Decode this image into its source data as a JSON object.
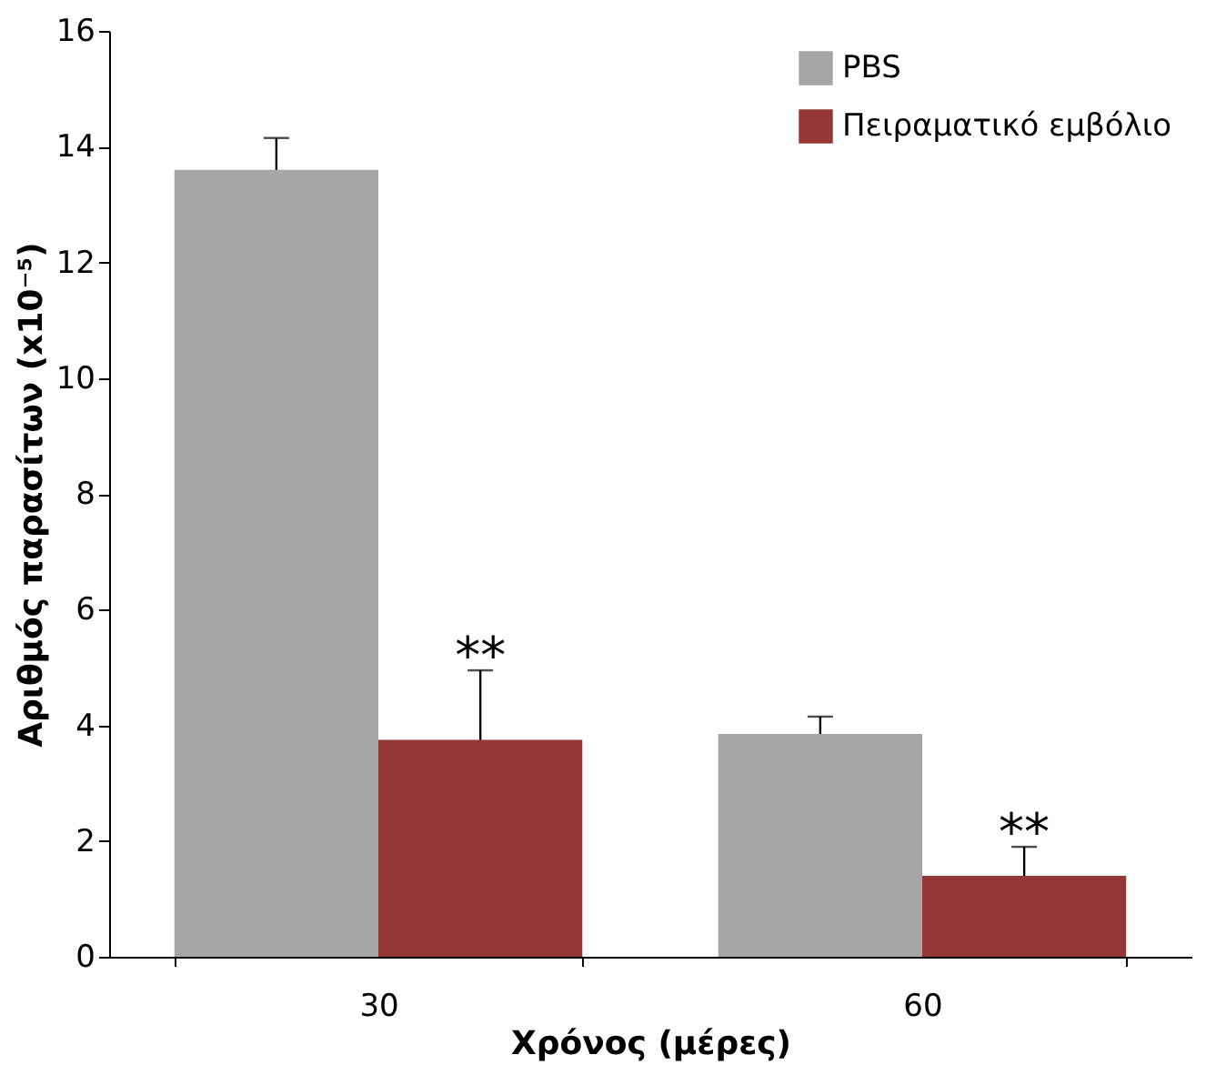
{
  "chart_data": {
    "type": "bar",
    "xlabel": "Χρόνος (μέρες)",
    "ylabel": "Αριθμός παρασίτων (x10⁻⁵)",
    "categories": [
      "30",
      "60"
    ],
    "series": [
      {
        "name": "PBS",
        "color": "#a6a6a6",
        "values": [
          13.6,
          3.85
        ],
        "errors": [
          0.55,
          0.3
        ]
      },
      {
        "name": "Πειραματικό εμβόλιο",
        "color": "#953735",
        "values": [
          3.75,
          1.4
        ],
        "errors": [
          1.2,
          0.5
        ]
      }
    ],
    "ylim": [
      0,
      16
    ],
    "yticks": [
      0,
      2,
      4,
      6,
      8,
      10,
      12,
      14,
      16
    ],
    "grid": false,
    "legend": "top right",
    "annotations": [
      {
        "text": "**",
        "x": "30",
        "y": 5.1
      },
      {
        "text": "**",
        "x": "60",
        "y": 2.05
      }
    ]
  }
}
